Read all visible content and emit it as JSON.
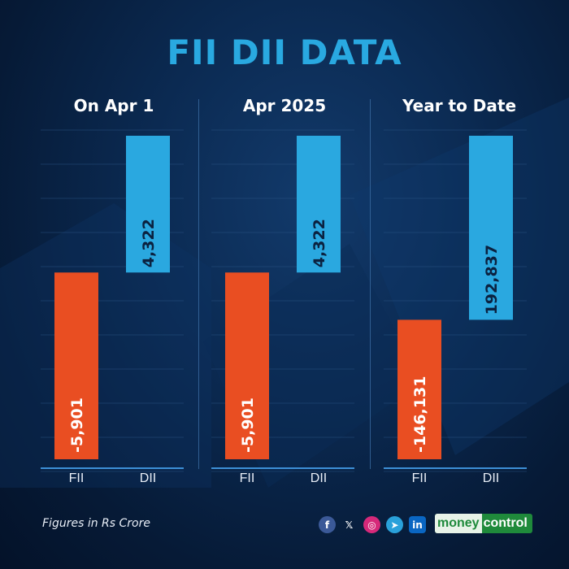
{
  "title": "FII DII DATA",
  "footer_note": "Figures in Rs Crore",
  "brand": {
    "name_part1": "money",
    "name_part2": "control"
  },
  "social_icons": [
    {
      "name": "facebook-icon",
      "glyph": "f",
      "color": "#3b5998"
    },
    {
      "name": "x-icon",
      "glyph": "𝕏",
      "color": "transparent"
    },
    {
      "name": "instagram-icon",
      "glyph": "◎",
      "color": "#d6297a"
    },
    {
      "name": "telegram-icon",
      "glyph": "➤",
      "color": "#2aa1da"
    },
    {
      "name": "linkedin-icon",
      "glyph": "in",
      "color": "#0a66c2"
    }
  ],
  "colors": {
    "fii": "#e94e22",
    "dii": "#2aa8e0",
    "title": "#29a9e1"
  },
  "chart_data": [
    {
      "type": "bar",
      "title": "On Apr 1",
      "categories": [
        "FII",
        "DII"
      ],
      "values": [
        -5901,
        4322
      ],
      "labels": [
        "-5,901",
        "4,322"
      ]
    },
    {
      "type": "bar",
      "title": "Apr 2025",
      "categories": [
        "FII",
        "DII"
      ],
      "values": [
        -5901,
        4322
      ],
      "labels": [
        "-5,901",
        "4,322"
      ]
    },
    {
      "type": "bar",
      "title": "Year to Date",
      "categories": [
        "FII",
        "DII"
      ],
      "values": [
        -146131,
        192837
      ],
      "labels": [
        "-146,131",
        "192,837"
      ]
    }
  ]
}
